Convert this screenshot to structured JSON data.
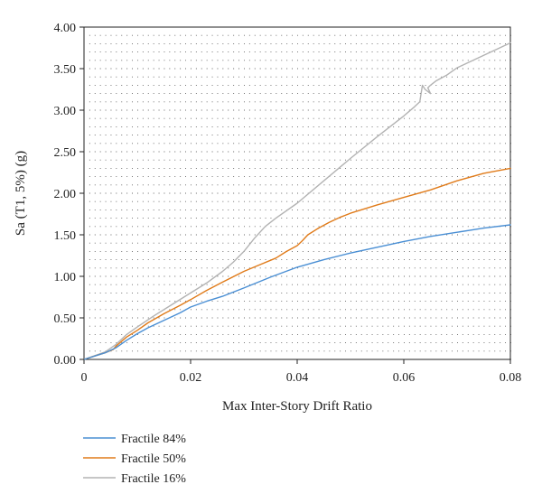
{
  "chart_data": {
    "type": "line",
    "title": "",
    "xlabel": "Max Inter-Story Drift Ratio",
    "ylabel": "Sa (T1, 5%) (g)",
    "xlim": [
      0,
      0.08
    ],
    "ylim": [
      0,
      4.0
    ],
    "x_ticks": [
      "0",
      "0.02",
      "0.04",
      "0.06",
      "0.08"
    ],
    "y_ticks": [
      "0.00",
      "0.50",
      "1.00",
      "1.50",
      "2.00",
      "2.50",
      "3.00",
      "3.50",
      "4.00"
    ],
    "grid": "dotted",
    "legend_position": "bottom-left",
    "series": [
      {
        "name": "Fractile 84%",
        "color": "#4a8fd4",
        "x": [
          0,
          0.004,
          0.006,
          0.008,
          0.01,
          0.012,
          0.015,
          0.018,
          0.02,
          0.023,
          0.026,
          0.03,
          0.035,
          0.04,
          0.045,
          0.05,
          0.055,
          0.06,
          0.065,
          0.07,
          0.075,
          0.08
        ],
        "y": [
          0,
          0.08,
          0.14,
          0.23,
          0.31,
          0.38,
          0.47,
          0.56,
          0.63,
          0.7,
          0.76,
          0.86,
          0.99,
          1.11,
          1.2,
          1.28,
          1.35,
          1.42,
          1.48,
          1.53,
          1.58,
          1.62
        ]
      },
      {
        "name": "Fractile 50%",
        "color": "#e07b1a",
        "x": [
          0,
          0.004,
          0.0055,
          0.006,
          0.008,
          0.01,
          0.012,
          0.015,
          0.018,
          0.02,
          0.023,
          0.026,
          0.03,
          0.033,
          0.036,
          0.038,
          0.04,
          0.041,
          0.042,
          0.044,
          0.046,
          0.048,
          0.05,
          0.055,
          0.06,
          0.065,
          0.07,
          0.075,
          0.08
        ],
        "y": [
          0,
          0.08,
          0.12,
          0.16,
          0.27,
          0.35,
          0.44,
          0.55,
          0.65,
          0.72,
          0.83,
          0.93,
          1.06,
          1.14,
          1.22,
          1.3,
          1.37,
          1.43,
          1.5,
          1.58,
          1.65,
          1.71,
          1.76,
          1.86,
          1.95,
          2.04,
          2.15,
          2.24,
          2.3
        ]
      },
      {
        "name": "Fractile 16%",
        "color": "#b3b3b3",
        "x": [
          0,
          0.004,
          0.006,
          0.008,
          0.01,
          0.013,
          0.016,
          0.02,
          0.023,
          0.026,
          0.028,
          0.03,
          0.032,
          0.034,
          0.036,
          0.04,
          0.045,
          0.05,
          0.055,
          0.06,
          0.062,
          0.063,
          0.0635,
          0.064,
          0.065,
          0.0645,
          0.065,
          0.066,
          0.068,
          0.07,
          0.075,
          0.08
        ],
        "y": [
          0,
          0.09,
          0.18,
          0.3,
          0.39,
          0.52,
          0.64,
          0.8,
          0.92,
          1.06,
          1.17,
          1.3,
          1.46,
          1.6,
          1.7,
          1.88,
          2.15,
          2.42,
          2.68,
          2.93,
          3.04,
          3.1,
          3.3,
          3.25,
          3.2,
          3.27,
          3.3,
          3.35,
          3.42,
          3.51,
          3.66,
          3.81
        ]
      }
    ]
  }
}
